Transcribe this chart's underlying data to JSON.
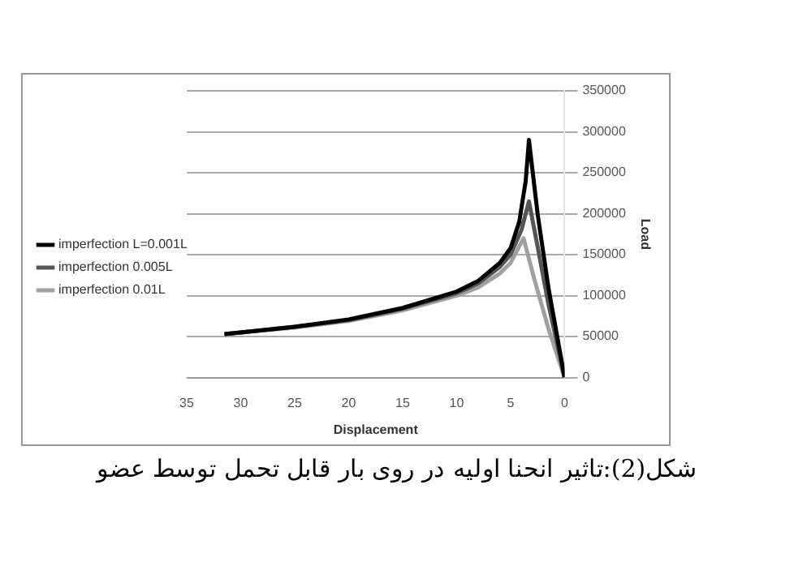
{
  "chart_data": {
    "type": "line",
    "xlabel": "Displacement",
    "ylabel": "Load",
    "xlim": [
      35,
      0
    ],
    "xticks": [
      35,
      30,
      25,
      20,
      15,
      10,
      5,
      0
    ],
    "ylim": [
      0,
      350000
    ],
    "yticks": [
      0,
      50000,
      100000,
      150000,
      200000,
      250000,
      300000,
      350000
    ],
    "grid": "y",
    "legend": "left",
    "marker": "none",
    "line_style": "solid",
    "series": [
      {
        "name": "imperfection L=0.001L",
        "color": "#000000",
        "x": [
          31.5,
          30,
          25,
          20,
          15,
          10,
          8,
          6,
          5,
          4.2,
          3.6,
          3.3,
          2.5,
          1.5,
          0
        ],
        "values": [
          53000,
          55000,
          62000,
          71000,
          85000,
          105000,
          118000,
          140000,
          158000,
          190000,
          240000,
          290000,
          200000,
          110000,
          0
        ]
      },
      {
        "name": "imperfection 0.005L",
        "color": "#555555",
        "x": [
          31.5,
          30,
          25,
          20,
          15,
          10,
          8,
          6,
          5,
          4,
          3.3,
          2.5,
          1.5,
          0
        ],
        "values": [
          53000,
          55000,
          62000,
          70000,
          84000,
          103000,
          115000,
          135000,
          150000,
          180000,
          215000,
          160000,
          90000,
          0
        ]
      },
      {
        "name": "imperfection 0.01L",
        "color": "#a0a0a0",
        "x": [
          31.5,
          30,
          25,
          20,
          15,
          10,
          8,
          6,
          5,
          4.2,
          3.8,
          2.8,
          1.5,
          0
        ],
        "values": [
          53000,
          55000,
          61000,
          69000,
          82000,
          100000,
          110000,
          127000,
          140000,
          160000,
          170000,
          120000,
          60000,
          0
        ]
      }
    ],
    "annotations": [
      "شکل(2):تاثیر انحنا اولیه در روی بار قابل تحمل توسط  عضو"
    ]
  }
}
